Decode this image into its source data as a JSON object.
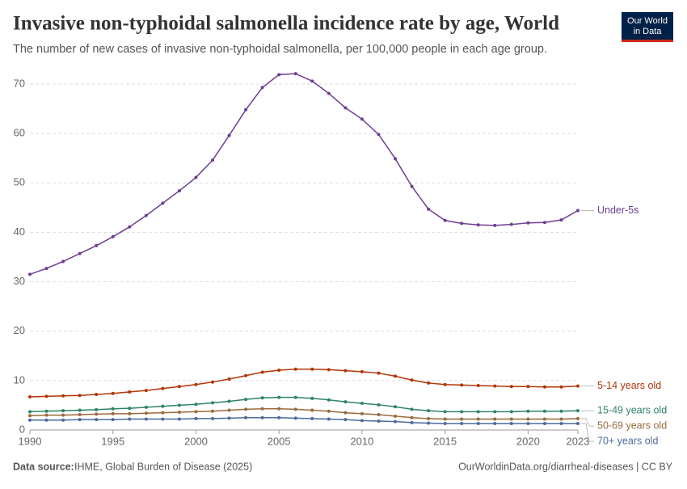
{
  "chart_data": {
    "type": "line",
    "title": "Invasive non-typhoidal salmonella incidence rate by age, World",
    "subtitle": "The number of new cases of invasive non-typhoidal salmonella, per 100,000 people in each age group.",
    "logo": [
      "Our World",
      "in Data"
    ],
    "source_label": "Data source:",
    "source": "IHME, Global Burden of Disease (2025)",
    "credit": "OurWorldinData.org/diarrheal-diseases | CC BY",
    "x": [
      1990,
      1991,
      1992,
      1993,
      1994,
      1995,
      1996,
      1997,
      1998,
      1999,
      2000,
      2001,
      2002,
      2003,
      2004,
      2005,
      2006,
      2007,
      2008,
      2009,
      2010,
      2011,
      2012,
      2013,
      2014,
      2015,
      2016,
      2017,
      2018,
      2019,
      2020,
      2021,
      2022,
      2023
    ],
    "xlim": [
      1990,
      2023
    ],
    "xticks": [
      1990,
      1995,
      2000,
      2005,
      2010,
      2015,
      2020,
      2023
    ],
    "ylim": [
      0,
      70
    ],
    "yticks": [
      0,
      10,
      20,
      30,
      40,
      50,
      60,
      70
    ],
    "grid": true,
    "series": [
      {
        "name": "Under-5s",
        "color": "#6d3e91",
        "values": [
          31.5,
          32.7,
          34.1,
          35.7,
          37.3,
          39.1,
          41.1,
          43.4,
          45.9,
          48.4,
          51.1,
          54.6,
          59.6,
          64.8,
          69.3,
          71.9,
          72.1,
          70.6,
          68.1,
          65.2,
          62.9,
          59.8,
          54.9,
          49.3,
          44.7,
          42.4,
          41.8,
          41.5,
          41.4,
          41.6,
          41.9,
          42.0,
          42.5,
          44.4
        ]
      },
      {
        "name": "5-14 years old",
        "color": "#b13507",
        "values": [
          6.7,
          6.8,
          6.9,
          7.0,
          7.2,
          7.4,
          7.7,
          8.0,
          8.4,
          8.8,
          9.2,
          9.7,
          10.3,
          11.0,
          11.7,
          12.1,
          12.3,
          12.3,
          12.2,
          12.0,
          11.8,
          11.5,
          10.9,
          10.1,
          9.5,
          9.2,
          9.1,
          9.0,
          8.9,
          8.8,
          8.8,
          8.7,
          8.7,
          8.9
        ]
      },
      {
        "name": "15-49 years old",
        "color": "#2c8465",
        "values": [
          3.7,
          3.8,
          3.9,
          4.0,
          4.1,
          4.3,
          4.4,
          4.6,
          4.8,
          5.0,
          5.2,
          5.5,
          5.8,
          6.2,
          6.5,
          6.6,
          6.6,
          6.4,
          6.1,
          5.7,
          5.4,
          5.1,
          4.7,
          4.2,
          3.9,
          3.7,
          3.7,
          3.7,
          3.7,
          3.7,
          3.8,
          3.8,
          3.8,
          3.9
        ]
      },
      {
        "name": "50-69 years old",
        "color": "#9a6a3a",
        "values": [
          2.9,
          3.0,
          3.0,
          3.1,
          3.2,
          3.3,
          3.3,
          3.4,
          3.5,
          3.6,
          3.7,
          3.8,
          4.0,
          4.2,
          4.3,
          4.3,
          4.2,
          4.0,
          3.8,
          3.5,
          3.3,
          3.1,
          2.8,
          2.5,
          2.3,
          2.2,
          2.2,
          2.2,
          2.2,
          2.2,
          2.2,
          2.2,
          2.2,
          2.3
        ]
      },
      {
        "name": "70+ years old",
        "color": "#4c6a9c",
        "values": [
          2.0,
          2.0,
          2.0,
          2.1,
          2.1,
          2.1,
          2.2,
          2.2,
          2.2,
          2.2,
          2.3,
          2.3,
          2.4,
          2.5,
          2.5,
          2.5,
          2.4,
          2.3,
          2.2,
          2.1,
          1.9,
          1.8,
          1.7,
          1.5,
          1.4,
          1.3,
          1.3,
          1.3,
          1.3,
          1.3,
          1.3,
          1.3,
          1.3,
          1.3
        ]
      }
    ]
  }
}
